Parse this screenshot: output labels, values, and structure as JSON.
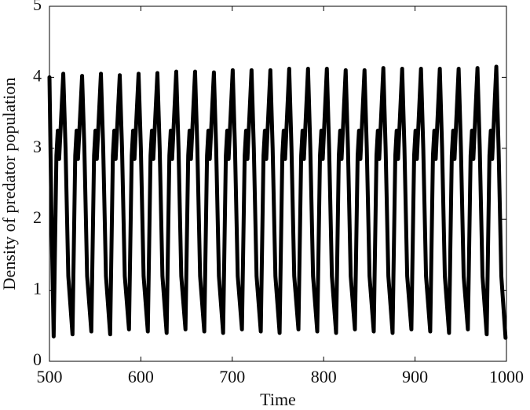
{
  "chart_data": {
    "type": "line",
    "xlabel": "Time",
    "ylabel": "Density of predator population",
    "xlim": [
      500,
      1000
    ],
    "xticks": [
      500,
      600,
      700,
      800,
      900,
      1000
    ],
    "ylim": [
      0,
      5
    ],
    "yticks": [
      0,
      1,
      2,
      3,
      4,
      5
    ],
    "series": [
      {
        "color": "#000000",
        "x": [
          500,
          502,
          504.6,
          507.6,
          509.1,
          510.6,
          515.1,
          517.6,
          520.6,
          525.2,
          528.2,
          529.7,
          531.2,
          535.7,
          538.2,
          541.2,
          545.8,
          548.8,
          550.3,
          551.8,
          556.3,
          558.8,
          561.8,
          566.4,
          569.4,
          570.9,
          572.4,
          576.9,
          579.4,
          582.4,
          587,
          590,
          591.5,
          593,
          597.5,
          600,
          603,
          607.6,
          610.6,
          612.1,
          613.6,
          618.1,
          620.6,
          623.6,
          628.2,
          631.2,
          632.7,
          634.2,
          638.7,
          641.2,
          644.2,
          648.8,
          651.8,
          653.3,
          654.8,
          659.3,
          661.8,
          664.8,
          669.4,
          672.4,
          673.9,
          675.4,
          679.9,
          682.4,
          685.4,
          690,
          693,
          694.5,
          696,
          700.5,
          703,
          706,
          710.6,
          713.6,
          715.1,
          716.6,
          721.1,
          723.6,
          726.6,
          731.2,
          734.2,
          735.7,
          737.2,
          741.7,
          744.2,
          747.2,
          751.8,
          754.8,
          756.3,
          757.8,
          762.3,
          764.8,
          767.8,
          772.4,
          775.4,
          776.9,
          778.4,
          782.9,
          785.4,
          788.4,
          793,
          796,
          797.5,
          799,
          803.5,
          806,
          809,
          813.6,
          816.6,
          818.1,
          819.6,
          824.1,
          826.6,
          829.6,
          834.2,
          837.2,
          838.7,
          840.2,
          844.7,
          847.2,
          850.2,
          854.8,
          857.8,
          859.3,
          860.8,
          865.3,
          867.8,
          870.8,
          875.4,
          878.4,
          879.9,
          881.4,
          885.9,
          888.4,
          891.4,
          896,
          899,
          900.5,
          902,
          906.5,
          909,
          912,
          916.6,
          919.6,
          921.1,
          922.6,
          927.1,
          929.6,
          932.6,
          937.2,
          940.2,
          941.7,
          943.2,
          947.7,
          950.2,
          953.2,
          957.8,
          960.8,
          962.3,
          963.8,
          968.3,
          970.8,
          973.8,
          978.4,
          981.4,
          982.9,
          984.4,
          988.9,
          991.4,
          994.4,
          999
        ],
        "values": [
          4.0,
          2.2,
          0.35,
          2.9,
          3.25,
          2.85,
          4.05,
          3.0,
          1.2,
          0.38,
          2.9,
          3.25,
          2.85,
          4.02,
          3.0,
          1.2,
          0.42,
          2.9,
          3.25,
          2.85,
          4.05,
          3.0,
          1.2,
          0.38,
          2.9,
          3.25,
          2.85,
          4.03,
          3.0,
          1.2,
          0.45,
          2.9,
          3.25,
          2.85,
          4.05,
          3.0,
          1.2,
          0.42,
          2.9,
          3.25,
          2.85,
          4.06,
          3.0,
          1.2,
          0.4,
          2.9,
          3.25,
          2.85,
          4.08,
          3.0,
          1.2,
          0.45,
          2.9,
          3.25,
          2.85,
          4.08,
          3.0,
          1.2,
          0.42,
          2.9,
          3.25,
          2.85,
          4.07,
          3.0,
          1.2,
          0.4,
          2.9,
          3.25,
          2.85,
          4.1,
          3.0,
          1.2,
          0.45,
          2.9,
          3.25,
          2.85,
          4.1,
          3.0,
          1.2,
          0.42,
          2.9,
          3.25,
          2.85,
          4.1,
          3.0,
          1.2,
          0.4,
          2.9,
          3.25,
          2.85,
          4.12,
          3.0,
          1.2,
          0.45,
          2.9,
          3.25,
          2.85,
          4.12,
          3.0,
          1.2,
          0.42,
          2.9,
          3.25,
          2.85,
          4.12,
          3.0,
          1.2,
          0.4,
          2.9,
          3.25,
          2.85,
          4.1,
          3.0,
          1.2,
          0.45,
          2.9,
          3.25,
          2.85,
          4.1,
          3.0,
          1.2,
          0.42,
          2.9,
          3.25,
          2.85,
          4.13,
          3.0,
          1.2,
          0.4,
          2.9,
          3.25,
          2.85,
          4.12,
          3.0,
          1.2,
          0.45,
          2.9,
          3.25,
          2.85,
          4.12,
          3.0,
          1.2,
          0.42,
          2.9,
          3.25,
          2.85,
          4.12,
          3.0,
          1.2,
          0.4,
          2.9,
          3.25,
          2.85,
          4.12,
          3.0,
          1.2,
          0.45,
          2.9,
          3.25,
          2.85,
          4.13,
          3.0,
          1.2,
          0.38,
          2.9,
          3.25,
          2.85,
          4.15,
          3.0,
          1.2,
          0.33
        ]
      }
    ]
  }
}
